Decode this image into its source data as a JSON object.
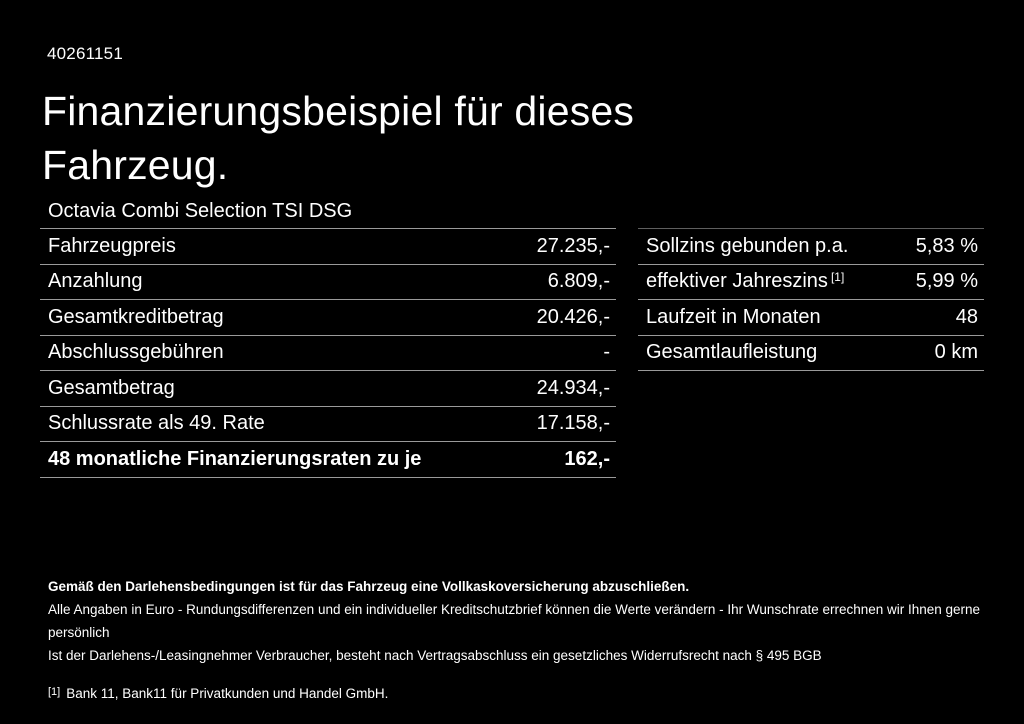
{
  "page": {
    "doc_number": "40261151",
    "title_line1": "Finanzierungsbeispiel für dieses",
    "title_line2": "Fahrzeug.",
    "vehicle_name": "Octavia Combi Selection TSI DSG"
  },
  "finance_table": {
    "rows": [
      {
        "label": "Fahrzeugpreis",
        "value": "27.235,-"
      },
      {
        "label": "Anzahlung",
        "value": "6.809,-"
      },
      {
        "label": "Gesamtkreditbetrag",
        "value": "20.426,-"
      },
      {
        "label": "Abschlussgebühren",
        "value": "-"
      },
      {
        "label": "Gesamtbetrag",
        "value": "24.934,-"
      },
      {
        "label": "Schlussrate als 49. Rate",
        "value": "17.158,-"
      },
      {
        "label": "48 monatliche Finanzierungsraten zu je",
        "value": "162,-"
      }
    ]
  },
  "conditions_table": {
    "rows": [
      {
        "label": "Sollzins gebunden p.a.",
        "value": "5,83 %"
      },
      {
        "label": "effektiver Jahreszins",
        "sup": "[1]",
        "value": "5,99 %"
      },
      {
        "label": "Laufzeit in Monaten",
        "value": "48"
      },
      {
        "label": "Gesamtlaufleistung",
        "value": "0 km"
      }
    ]
  },
  "footer": {
    "insurance_note": "Gemäß den Darlehensbedingungen ist für das Fahrzeug eine Vollkaskoversicherung abzuschließen.",
    "disclaimer_line1": "Alle Angaben in Euro - Rundungsdifferenzen und ein individueller Kreditschutzbrief können die Werte verändern - Ihr Wunschrate errechnen wir Ihnen gerne persönlich",
    "disclaimer_line2": "Ist der Darlehens-/Leasingnehmer Verbraucher, besteht nach Vertragsabschluss ein gesetzliches Widerrufsrecht nach § 495 BGB",
    "footnote_marker": "[1]",
    "footnote_text": "Bank 11, Bank11 für Privatkunden und Handel GmbH."
  },
  "colors": {
    "background": "#000000",
    "text": "#ffffff",
    "divider": "#9a9a9a"
  }
}
